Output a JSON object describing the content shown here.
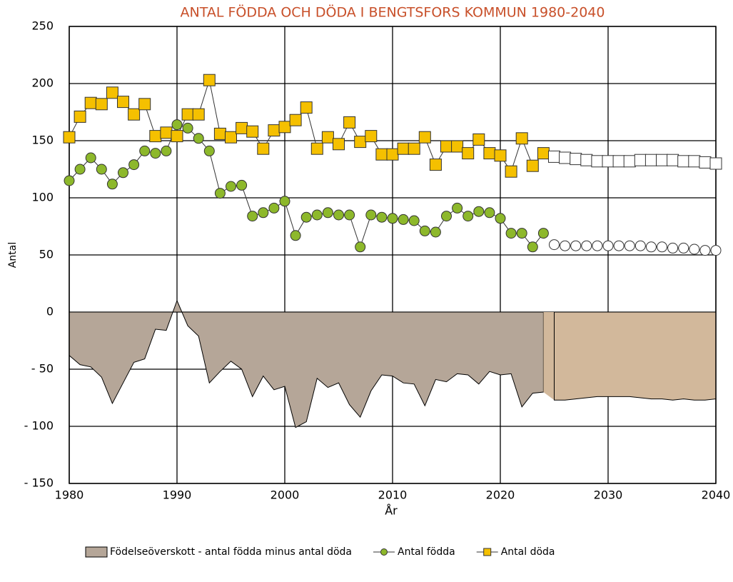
{
  "chart_data": {
    "type": "line",
    "title": "ANTAL FÖDDA OCH DÖDA I BENGTSFORS KOMMUN 1980-2040",
    "xlabel": "År",
    "ylabel": "Antal",
    "x": [
      1980,
      1981,
      1982,
      1983,
      1984,
      1985,
      1986,
      1987,
      1988,
      1989,
      1990,
      1991,
      1992,
      1993,
      1994,
      1995,
      1996,
      1997,
      1998,
      1999,
      2000,
      2001,
      2002,
      2003,
      2004,
      2005,
      2006,
      2007,
      2008,
      2009,
      2010,
      2011,
      2012,
      2013,
      2014,
      2015,
      2016,
      2017,
      2018,
      2019,
      2020,
      2021,
      2022,
      2023,
      2024,
      2025,
      2026,
      2027,
      2028,
      2029,
      2030,
      2031,
      2032,
      2033,
      2034,
      2035,
      2036,
      2037,
      2038,
      2039,
      2040
    ],
    "xlim": [
      1980,
      2040
    ],
    "xticks": [
      1980,
      1990,
      2000,
      2010,
      2020,
      2030,
      2040
    ],
    "ylim": [
      -150,
      250
    ],
    "yticks": [
      {
        "value": -150,
        "label": "- 150"
      },
      {
        "value": -100,
        "label": "- 100"
      },
      {
        "value": -50,
        "label": "- 50"
      },
      0,
      50,
      100,
      150,
      200,
      250
    ],
    "grid": true,
    "legend": "bottom",
    "series": [
      {
        "name": "Födelseöverskott - antal födda minus antal döda",
        "kind": "area",
        "color": "#b5a698",
        "values": [
          -38,
          -46,
          -48,
          -57,
          -80,
          -62,
          -44,
          -41,
          -15,
          -16,
          10,
          -12,
          -21,
          -62,
          -52,
          -43,
          -50,
          -74,
          -56,
          -68,
          -65,
          -101,
          -96,
          -58,
          -66,
          -62,
          -81,
          -92,
          -69,
          -55,
          -56,
          -62,
          -63,
          -82,
          -59,
          -61,
          -54,
          -55,
          -63,
          -52,
          -55,
          -54,
          -83,
          -71,
          -70,
          null,
          null,
          null,
          null,
          null,
          null,
          null,
          null,
          null,
          null,
          null,
          null,
          null,
          null,
          null,
          null
        ]
      },
      {
        "kind": "area",
        "color": "#d2b89b",
        "values": [
          null,
          null,
          null,
          null,
          null,
          null,
          null,
          null,
          null,
          null,
          null,
          null,
          null,
          null,
          null,
          null,
          null,
          null,
          null,
          null,
          null,
          null,
          null,
          null,
          null,
          null,
          null,
          null,
          null,
          null,
          null,
          null,
          null,
          null,
          null,
          null,
          null,
          null,
          null,
          null,
          null,
          null,
          null,
          null,
          null,
          -77,
          -77,
          -76,
          -75,
          -74,
          -74,
          -74,
          -74,
          -75,
          -76,
          -76,
          -77,
          -76,
          -77,
          -77,
          -76
        ]
      },
      {
        "name": "Antal födda",
        "kind": "line",
        "marker": "circle",
        "color": "#8db82b",
        "values": [
          115,
          125,
          135,
          125,
          112,
          122,
          129,
          141,
          139,
          141,
          164,
          161,
          152,
          141,
          104,
          110,
          111,
          84,
          87,
          91,
          97,
          67,
          83,
          85,
          87,
          85,
          85,
          57,
          85,
          83,
          82,
          81,
          80,
          71,
          70,
          84,
          91,
          84,
          88,
          87,
          82,
          69,
          69,
          57,
          69,
          null,
          null,
          null,
          null,
          null,
          null,
          null,
          null,
          null,
          null,
          null,
          null,
          null,
          null,
          null,
          null
        ]
      },
      {
        "kind": "line",
        "marker": "circle",
        "color": "#ffffff",
        "values": [
          null,
          null,
          null,
          null,
          null,
          null,
          null,
          null,
          null,
          null,
          null,
          null,
          null,
          null,
          null,
          null,
          null,
          null,
          null,
          null,
          null,
          null,
          null,
          null,
          null,
          null,
          null,
          null,
          null,
          null,
          null,
          null,
          null,
          null,
          null,
          null,
          null,
          null,
          null,
          null,
          null,
          null,
          null,
          null,
          null,
          59,
          58,
          58,
          58,
          58,
          58,
          58,
          58,
          58,
          57,
          57,
          56,
          56,
          55,
          54,
          54
        ]
      },
      {
        "name": "Antal döda",
        "kind": "line",
        "marker": "square",
        "color": "#f5c000",
        "values": [
          153,
          171,
          183,
          182,
          192,
          184,
          173,
          182,
          154,
          157,
          154,
          173,
          173,
          203,
          156,
          153,
          161,
          158,
          143,
          159,
          162,
          168,
          179,
          143,
          153,
          147,
          166,
          149,
          154,
          138,
          138,
          143,
          143,
          153,
          129,
          145,
          145,
          139,
          151,
          139,
          137,
          123,
          152,
          128,
          139,
          null,
          null,
          null,
          null,
          null,
          null,
          null,
          null,
          null,
          null,
          null,
          null,
          null,
          null,
          null,
          null
        ]
      },
      {
        "kind": "line",
        "marker": "square",
        "color": "#ffffff",
        "values": [
          null,
          null,
          null,
          null,
          null,
          null,
          null,
          null,
          null,
          null,
          null,
          null,
          null,
          null,
          null,
          null,
          null,
          null,
          null,
          null,
          null,
          null,
          null,
          null,
          null,
          null,
          null,
          null,
          null,
          null,
          null,
          null,
          null,
          null,
          null,
          null,
          null,
          null,
          null,
          null,
          null,
          null,
          null,
          null,
          null,
          136,
          135,
          134,
          133,
          132,
          132,
          132,
          132,
          133,
          133,
          133,
          133,
          132,
          132,
          131,
          130
        ]
      }
    ]
  }
}
